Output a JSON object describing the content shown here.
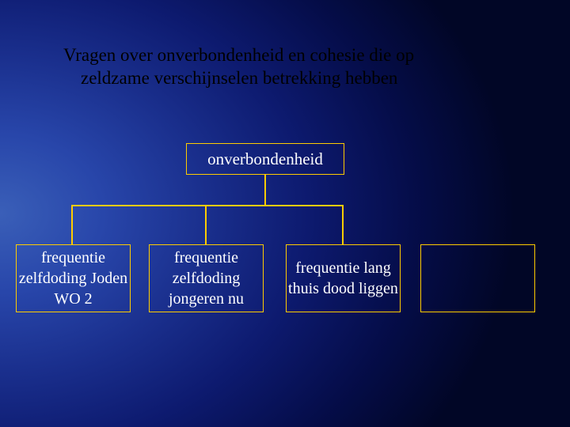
{
  "type": "tree",
  "background": {
    "gradient_center": "#3a5fb8",
    "gradient_edge": "#010626",
    "style": "radial-left"
  },
  "title": {
    "line1": "Vragen over onverbondenheid en cohesie die op",
    "line2": "zeldzame verschijnselen betrekking hebben",
    "color": "#000000",
    "fontsize_pt": 17,
    "font_family": "Times New Roman"
  },
  "box_style": {
    "border_color": "#ffcc00",
    "border_width": 1,
    "text_color": "#ffffff",
    "fontsize_pt": 15,
    "fill": "transparent"
  },
  "connector_style": {
    "color": "#ffcc00",
    "width": 2
  },
  "nodes": {
    "root": {
      "label": "onverbondenheid"
    },
    "child1": {
      "label": "frequentie zelfdoding Joden WO 2"
    },
    "child2": {
      "label": "frequentie zelfdoding jongeren nu"
    },
    "child3": {
      "label": "frequentie lang thuis dood liggen"
    },
    "child4": {
      "label": ""
    }
  },
  "edges": [
    {
      "from": "root",
      "to": "child1"
    },
    {
      "from": "root",
      "to": "child2"
    },
    {
      "from": "root",
      "to": "child3"
    }
  ]
}
